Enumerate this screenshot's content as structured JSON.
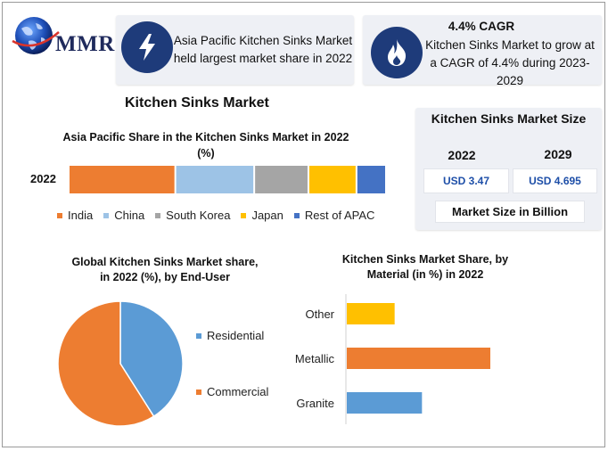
{
  "brand": {
    "logo_text": "MMR"
  },
  "header_cards": {
    "card1": {
      "icon": "lightning-icon",
      "text": "Asia Pacific Kitchen Sinks Market held largest market share in 2022"
    },
    "card2": {
      "icon": "flame-icon",
      "title": "4.4% CAGR",
      "text": "Kitchen Sinks Market to grow at a CAGR of 4.4% during 2023-2029"
    }
  },
  "main_title": "Kitchen Sinks Market",
  "market_size": {
    "title": "Kitchen Sinks Market Size",
    "years": [
      "2022",
      "2029"
    ],
    "values": [
      "USD 3.47",
      "USD 4.695"
    ],
    "footer": "Market Size in Billion"
  },
  "colors": {
    "india": "#ED7D31",
    "china": "#9DC3E6",
    "south_korea": "#A5A5A5",
    "japan": "#FFC000",
    "rest_of_apac": "#4472C4",
    "residential": "#5B9BD5",
    "commercial": "#ED7D31",
    "navy": "#1E3B7A"
  },
  "chart_data": [
    {
      "type": "bar",
      "orientation": "horizontal-stacked",
      "title": "Asia Pacific Share in the Kitchen Sinks Market in 2022 (%)",
      "categories": [
        "2022"
      ],
      "series": [
        {
          "name": "India",
          "values": [
            34
          ],
          "color": "#ED7D31"
        },
        {
          "name": "China",
          "values": [
            25
          ],
          "color": "#9DC3E6"
        },
        {
          "name": "South Korea",
          "values": [
            17
          ],
          "color": "#A5A5A5"
        },
        {
          "name": "Japan",
          "values": [
            15
          ],
          "color": "#FFC000"
        },
        {
          "name": "Rest of APAC",
          "values": [
            9
          ],
          "color": "#4472C4"
        }
      ],
      "legend": "bottom",
      "grid": false
    },
    {
      "type": "pie",
      "title": "Global Kitchen Sinks Market share, in 2022 (%), by End-User",
      "categories": [
        "Residential",
        "Commercial"
      ],
      "values": [
        41,
        59
      ],
      "colors": [
        "#5B9BD5",
        "#ED7D31"
      ],
      "legend": "right"
    },
    {
      "type": "bar",
      "orientation": "horizontal",
      "title": "Kitchen Sinks Market Share, by Material (in %) in 2022",
      "categories": [
        "Other",
        "Metallic",
        "Granite"
      ],
      "values": [
        14,
        42,
        22
      ],
      "colors": [
        "#FFC000",
        "#ED7D31",
        "#5B9BD5"
      ],
      "xlim": [
        0,
        60
      ],
      "grid": false
    }
  ]
}
